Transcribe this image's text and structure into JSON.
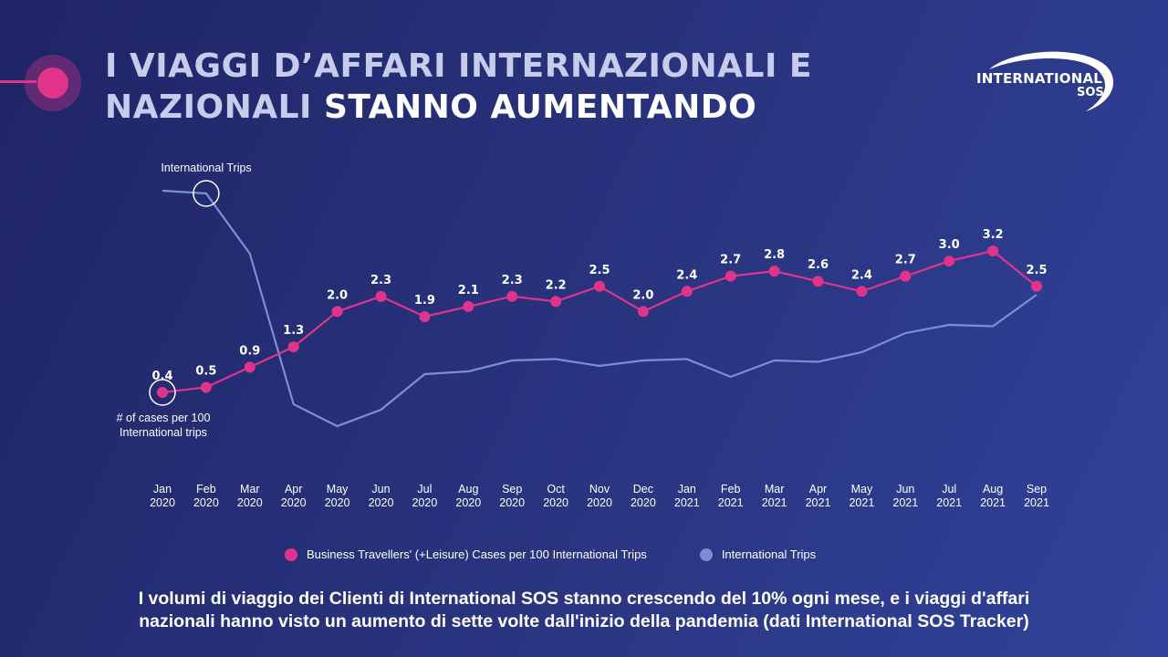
{
  "header": {
    "title_part1": "I VIAGGI D’AFFARI INTERNAZIONALI E NAZIONALI",
    "title_part2": "STANNO AUMENTANDO"
  },
  "logo": {
    "line1": "INTERNATIONAL",
    "line2": "SOS"
  },
  "chart_data": {
    "type": "line",
    "categories": [
      [
        "Jan",
        "2020"
      ],
      [
        "Feb",
        "2020"
      ],
      [
        "Mar",
        "2020"
      ],
      [
        "Apr",
        "2020"
      ],
      [
        "May",
        "2020"
      ],
      [
        "Jun",
        "2020"
      ],
      [
        "Jul",
        "2020"
      ],
      [
        "Aug",
        "2020"
      ],
      [
        "Sep",
        "2020"
      ],
      [
        "Oct",
        "2020"
      ],
      [
        "Nov",
        "2020"
      ],
      [
        "Dec",
        "2020"
      ],
      [
        "Jan",
        "2021"
      ],
      [
        "Feb",
        "2021"
      ],
      [
        "Mar",
        "2021"
      ],
      [
        "Apr",
        "2021"
      ],
      [
        "May",
        "2021"
      ],
      [
        "Jun",
        "2021"
      ],
      [
        "Jul",
        "2021"
      ],
      [
        "Aug",
        "2021"
      ],
      [
        "Sep",
        "2021"
      ]
    ],
    "series": [
      {
        "name": "Business Travellers' (+Leisure) Cases per 100 International Trips",
        "color": "#e0338a",
        "values": [
          0.4,
          0.5,
          0.9,
          1.3,
          2.0,
          2.3,
          1.9,
          2.1,
          2.3,
          2.2,
          2.5,
          2.0,
          2.4,
          2.7,
          2.8,
          2.6,
          2.4,
          2.7,
          3.0,
          3.2,
          2.5
        ],
        "labels": [
          "0.4",
          "0.5",
          "0.9",
          "1.3",
          "2.0",
          "2.3",
          "1.9",
          "2.1",
          "2.3",
          "2.2",
          "2.5",
          "2.0",
          "2.4",
          "2.7",
          "2.8",
          "2.6",
          "2.4",
          "2.7",
          "3.0",
          "3.2",
          "2.5"
        ]
      },
      {
        "name": "International Trips",
        "color": "#7b8fd3",
        "values": [
          100,
          99,
          77,
          22,
          14,
          20,
          33,
          34,
          38,
          38.5,
          36,
          38,
          38.5,
          32,
          38,
          37.5,
          41,
          48,
          51,
          50.5,
          62
        ]
      }
    ],
    "annotations": {
      "international_trips": "International Trips",
      "cases_line1": "# of cases per 100",
      "cases_line2": "International trips"
    },
    "legend_position": "bottom",
    "grid": false
  },
  "footer": {
    "line1": "I volumi di viaggio dei Clienti di International SOS stanno crescendo del 10% ogni mese, e i viaggi d'affari",
    "line2": "nazionali hanno visto un aumento di sette volte dall'inizio della pandemia (dati International SOS Tracker)"
  }
}
